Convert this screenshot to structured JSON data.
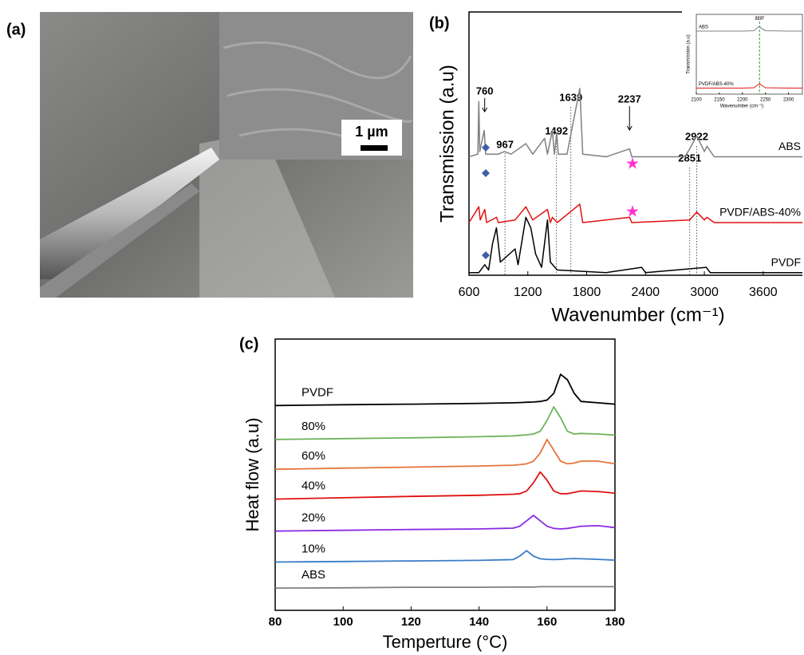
{
  "photo": {
    "label": "(a)",
    "scale_bar": "1 µm"
  },
  "chart_data": [
    {
      "type": "line",
      "label": "(b)",
      "xlabel": "Wavenumber (cm⁻¹)",
      "ylabel": "Transmission (a.u)",
      "xlim": [
        600,
        4000
      ],
      "ylim": [
        0,
        100
      ],
      "xticks": [
        600,
        1200,
        1800,
        2400,
        3000,
        3600
      ],
      "peak_labels": [
        760,
        967,
        1492,
        1639,
        2237,
        2851,
        2922
      ],
      "series": [
        {
          "name": "ABS",
          "color": "#808080",
          "x": [
            600,
            690,
            700,
            710,
            755,
            770,
            900,
            960,
            1030,
            1180,
            1250,
            1370,
            1400,
            1450,
            1470,
            1495,
            1510,
            1600,
            1730,
            1760,
            2000,
            2237,
            2260,
            2800,
            2851,
            2922,
            3000,
            3026,
            3100,
            4000
          ],
          "values": [
            45,
            46,
            66,
            47,
            55,
            46,
            46,
            47,
            46,
            50,
            46,
            52,
            46,
            55,
            46,
            54,
            46,
            46,
            71,
            46,
            45,
            48,
            45,
            45,
            48,
            53,
            47,
            49,
            45,
            45
          ]
        },
        {
          "name": "PVDF/ABS-40%",
          "color": "#e01010",
          "x": [
            600,
            700,
            715,
            760,
            780,
            880,
            900,
            1070,
            1180,
            1250,
            1400,
            1430,
            1450,
            1500,
            1730,
            1760,
            2237,
            2260,
            2850,
            2922,
            3000,
            3026,
            3100,
            4000
          ],
          "values": [
            20,
            26,
            21,
            25,
            20,
            22,
            20,
            21,
            26,
            21,
            25,
            20,
            22,
            20,
            27,
            20,
            22,
            20,
            21,
            24,
            21,
            22,
            20,
            20
          ]
        },
        {
          "name": "PVDF",
          "color": "#000000",
          "x": [
            600,
            700,
            760,
            800,
            840,
            880,
            920,
            1070,
            1100,
            1180,
            1230,
            1280,
            1340,
            1400,
            1430,
            1500,
            2000,
            2360,
            2400,
            3020,
            3060,
            4000
          ],
          "values": [
            1,
            1,
            4,
            2,
            12,
            18,
            5,
            10,
            4,
            22,
            18,
            8,
            3,
            21,
            5,
            2,
            1,
            3,
            1,
            3,
            1,
            1
          ]
        }
      ]
    },
    {
      "type": "line",
      "xlabel": "Wavenumber (cm⁻¹)",
      "ylabel": "Transmission (a.u)",
      "xlim": [
        2100,
        2330
      ],
      "ylim": [
        0,
        100
      ],
      "xticks": [
        2100,
        2150,
        2200,
        2250,
        2300
      ],
      "peak_labels": [
        2237
      ],
      "series": [
        {
          "name": "ABS",
          "color": "#808080",
          "x": [
            2100,
            2200,
            2225,
            2232,
            2237,
            2242,
            2250,
            2300,
            2330
          ],
          "values": [
            79,
            79,
            79.5,
            83,
            85,
            82,
            79.5,
            79,
            79
          ]
        },
        {
          "name": "PVDF/ABS-40%",
          "color": "#e01010",
          "x": [
            2100,
            2200,
            2225,
            2232,
            2237,
            2242,
            2250,
            2300,
            2330
          ],
          "values": [
            7.6,
            7.6,
            8,
            11,
            13,
            11,
            8,
            7.6,
            7.6
          ]
        }
      ]
    },
    {
      "type": "line",
      "label": "(c)",
      "xlabel": "Temperture (°C)",
      "ylabel": "Heat flow (a.u)",
      "xlim": [
        80,
        180
      ],
      "ylim": [
        0,
        100
      ],
      "xticks": [
        80,
        100,
        120,
        140,
        160,
        180
      ],
      "x": [
        80,
        100,
        120,
        140,
        150,
        152,
        154,
        156,
        158,
        160,
        162,
        164,
        166,
        168,
        170,
        175,
        180
      ],
      "series": [
        {
          "name": "PVDF",
          "color": "#000000",
          "values": [
            75.5,
            75.8,
            76,
            76.3,
            76.5,
            76.6,
            76.7,
            76.8,
            77,
            77.5,
            80,
            87,
            85,
            80,
            77,
            76.5,
            76
          ]
        },
        {
          "name": "80%",
          "color": "#6db35a",
          "values": [
            63,
            63.3,
            63.6,
            64,
            64.3,
            64.5,
            64.7,
            65,
            66,
            70,
            75,
            71,
            66,
            65,
            65.2,
            65,
            64.6
          ]
        },
        {
          "name": "60%",
          "color": "#e3763a",
          "values": [
            52,
            52.4,
            52.8,
            53.2,
            53.5,
            53.7,
            54,
            55,
            58,
            63,
            59,
            55,
            54,
            54.3,
            55,
            55,
            54
          ]
        },
        {
          "name": "40%",
          "color": "#e01010",
          "values": [
            41,
            41.5,
            42,
            42.4,
            42.8,
            43,
            44,
            47,
            51,
            48,
            44,
            43,
            43,
            43.5,
            44,
            43.8,
            43.2
          ]
        },
        {
          "name": "20%",
          "color": "#8a2be2",
          "values": [
            29.2,
            29.5,
            29.8,
            30,
            30.3,
            31,
            33,
            35,
            33,
            31,
            30.2,
            30,
            30.2,
            30.6,
            31,
            31.2,
            30.5
          ]
        },
        {
          "name": "10%",
          "color": "#3a7dc9",
          "values": [
            17.8,
            18,
            18.2,
            18.4,
            18.7,
            20,
            22,
            20,
            19,
            18.8,
            18.7,
            18.8,
            19,
            19.1,
            19,
            18.8,
            18.5
          ]
        },
        {
          "name": "ABS",
          "color": "#808080",
          "values": [
            8.2,
            8.3,
            8.5,
            8.5,
            8.6,
            8.6,
            8.6,
            8.6,
            8.7,
            8.7,
            8.7,
            8.7,
            8.7,
            8.7,
            8.7,
            8.7,
            8.7
          ]
        }
      ]
    }
  ]
}
